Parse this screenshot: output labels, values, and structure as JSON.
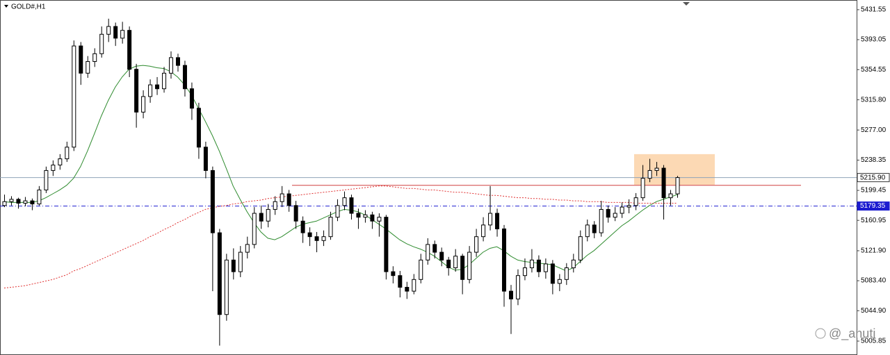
{
  "chart_data": {
    "type": "candlestick",
    "title": "GOLD#,H1",
    "watermark": "@_anuti",
    "ylim": [
      4988,
      5444
    ],
    "yticks": [
      5431.55,
      5393.05,
      5354.55,
      {
        "value": 5315.8,
        "label": "5315.80"
      },
      {
        "value": 5277,
        "label": "5277.00"
      },
      5238.35,
      5199.45,
      5160.95,
      {
        "value": 5121.9,
        "label": "5121.90"
      },
      {
        "value": 5083.4,
        "label": "5083.40"
      },
      {
        "value": 5044.9,
        "label": "5044.90"
      },
      5005.85
    ],
    "candles": {
      "bull_color": "#ffffff",
      "bear_color": "#000000",
      "open": [
        5180,
        5185,
        5188,
        5183,
        5186,
        5182,
        5200,
        5225,
        5232,
        5240,
        5255,
        5385,
        5350,
        5365,
        5375,
        5400,
        5410,
        5395,
        5405,
        5355,
        5300,
        5320,
        5335,
        5330,
        5350,
        5370,
        5360,
        5330,
        5305,
        5255,
        5225,
        5145,
        5040,
        5110,
        5095,
        5120,
        5130,
        5170,
        5160,
        5175,
        5185,
        5195,
        5180,
        5160,
        5145,
        5140,
        5135,
        5140,
        5165,
        5180,
        5190,
        5170,
        5165,
        5168,
        5160,
        5165,
        5095,
        5090,
        5075,
        5070,
        5085,
        5110,
        5130,
        5120,
        5110,
        5100,
        5115,
        5085,
        5120,
        5140,
        5155,
        5170,
        5150,
        5070,
        5060,
        5090,
        5100,
        5110,
        5095,
        5105,
        5080,
        5085,
        5100,
        5110,
        5140,
        5155,
        5145,
        5175,
        5165,
        5170,
        5178,
        5180,
        5190,
        5215,
        5225,
        5228,
        5190,
        5195
      ],
      "high": [
        5194,
        5192,
        5190,
        5191,
        5189,
        5205,
        5230,
        5238,
        5246,
        5262,
        5392,
        5390,
        5372,
        5382,
        5410,
        5420,
        5415,
        5416,
        5410,
        5362,
        5328,
        5342,
        5345,
        5358,
        5378,
        5375,
        5366,
        5338,
        5312,
        5262,
        5230,
        5150,
        5118,
        5125,
        5128,
        5140,
        5178,
        5180,
        5182,
        5192,
        5205,
        5200,
        5186,
        5166,
        5152,
        5146,
        5148,
        5172,
        5188,
        5198,
        5194,
        5176,
        5174,
        5172,
        5170,
        5168,
        5102,
        5096,
        5082,
        5092,
        5118,
        5138,
        5135,
        5126,
        5114,
        5124,
        5118,
        5128,
        5150,
        5165,
        5205,
        5176,
        5155,
        5078,
        5098,
        5112,
        5124,
        5116,
        5112,
        5110,
        5092,
        5106,
        5118,
        5148,
        5162,
        5160,
        5186,
        5180,
        5178,
        5184,
        5188,
        5196,
        5232,
        5240,
        5236,
        5232,
        5200,
        5218
      ],
      "low": [
        5178,
        5180,
        5176,
        5179,
        5174,
        5180,
        5196,
        5218,
        5226,
        5236,
        5250,
        5335,
        5344,
        5358,
        5370,
        5390,
        5385,
        5388,
        5345,
        5280,
        5292,
        5312,
        5322,
        5325,
        5343,
        5352,
        5320,
        5290,
        5240,
        5215,
        5070,
        5000,
        5032,
        5085,
        5088,
        5112,
        5125,
        5150,
        5152,
        5168,
        5178,
        5172,
        5150,
        5132,
        5128,
        5120,
        5128,
        5136,
        5160,
        5174,
        5162,
        5150,
        5158,
        5150,
        5140,
        5085,
        5080,
        5062,
        5060,
        5066,
        5080,
        5104,
        5112,
        5102,
        5090,
        5095,
        5066,
        5080,
        5114,
        5134,
        5148,
        5140,
        5050,
        5015,
        5052,
        5084,
        5094,
        5088,
        5086,
        5066,
        5070,
        5078,
        5094,
        5106,
        5134,
        5138,
        5140,
        5158,
        5160,
        5164,
        5170,
        5174,
        5186,
        5210,
        5218,
        5162,
        5180,
        5190
      ],
      "close": [
        5185,
        5188,
        5183,
        5186,
        5182,
        5200,
        5225,
        5232,
        5240,
        5255,
        5385,
        5350,
        5365,
        5375,
        5400,
        5410,
        5395,
        5405,
        5355,
        5300,
        5320,
        5335,
        5330,
        5350,
        5370,
        5360,
        5330,
        5305,
        5255,
        5225,
        5145,
        5040,
        5110,
        5095,
        5120,
        5130,
        5170,
        5160,
        5175,
        5185,
        5195,
        5180,
        5160,
        5145,
        5140,
        5135,
        5140,
        5165,
        5180,
        5190,
        5170,
        5165,
        5168,
        5160,
        5165,
        5095,
        5090,
        5075,
        5070,
        5085,
        5110,
        5130,
        5120,
        5110,
        5100,
        5115,
        5085,
        5120,
        5140,
        5155,
        5170,
        5150,
        5070,
        5060,
        5090,
        5100,
        5110,
        5095,
        5105,
        5080,
        5085,
        5100,
        5110,
        5140,
        5155,
        5145,
        5175,
        5165,
        5170,
        5178,
        5180,
        5190,
        5215,
        5225,
        5228,
        5190,
        5195,
        5215.9
      ]
    },
    "moving_averages": [
      {
        "color": "#2e8b2e",
        "style": "solid",
        "values": [
          5185,
          5184,
          5184,
          5184,
          5184,
          5186,
          5190,
          5195,
          5200,
          5206,
          5215,
          5230,
          5250,
          5272,
          5295,
          5315,
          5332,
          5345,
          5355,
          5359,
          5360,
          5359,
          5357,
          5356,
          5352,
          5345,
          5335,
          5322,
          5305,
          5288,
          5270,
          5250,
          5228,
          5205,
          5188,
          5172,
          5158,
          5146,
          5138,
          5136,
          5140,
          5146,
          5152,
          5156,
          5158,
          5160,
          5164,
          5168,
          5172,
          5175,
          5174,
          5172,
          5168,
          5162,
          5156,
          5150,
          5143,
          5136,
          5131,
          5127,
          5124,
          5120,
          5115,
          5108,
          5101,
          5097,
          5098,
          5104,
          5112,
          5120,
          5125,
          5127,
          5122,
          5115,
          5110,
          5108,
          5107,
          5106,
          5105,
          5104,
          5100,
          5096,
          5100,
          5108,
          5116,
          5122,
          5130,
          5138,
          5146,
          5154,
          5160,
          5167,
          5174,
          5180,
          5185,
          5188,
          5191,
          5194
        ]
      },
      {
        "color": "#e03030",
        "style": "dotted",
        "values": [
          5074,
          5075,
          5076,
          5077,
          5079,
          5081,
          5083,
          5085,
          5088,
          5091,
          5096,
          5099,
          5103,
          5107,
          5111,
          5115,
          5119,
          5123,
          5127,
          5131,
          5135,
          5140,
          5144,
          5149,
          5153,
          5158,
          5162,
          5167,
          5171,
          5175,
          5177,
          5179,
          5180,
          5182,
          5183,
          5185,
          5186,
          5187,
          5189,
          5190,
          5191,
          5192,
          5193,
          5194,
          5195,
          5196,
          5197,
          5198,
          5199,
          5200,
          5201,
          5202,
          5203,
          5204,
          5205,
          5205,
          5204,
          5203,
          5202,
          5202,
          5201,
          5200,
          5200,
          5199,
          5198,
          5197,
          5197,
          5196,
          5195,
          5194,
          5193,
          5193,
          5192,
          5191,
          5190,
          5190,
          5189,
          5189,
          5188,
          5188,
          5187,
          5187,
          5186,
          5186,
          5185,
          5185,
          5185,
          5184,
          5184,
          5184,
          5184,
          5183,
          5183,
          5183,
          5183,
          5183,
          5183,
          5183
        ]
      }
    ],
    "levels": [
      {
        "value": 5215.9,
        "label": "5215.90",
        "color": "#8fa3b8",
        "style": "solid"
      },
      {
        "value": 5179.35,
        "label": "5179.35",
        "color": "#1c1cd0",
        "style": "dashdot"
      },
      {
        "value": 5206,
        "color": "#d04040",
        "style": "solid"
      }
    ],
    "zone": {
      "low": 5206.5,
      "high": 5246,
      "color": "#fcd9b4"
    }
  }
}
